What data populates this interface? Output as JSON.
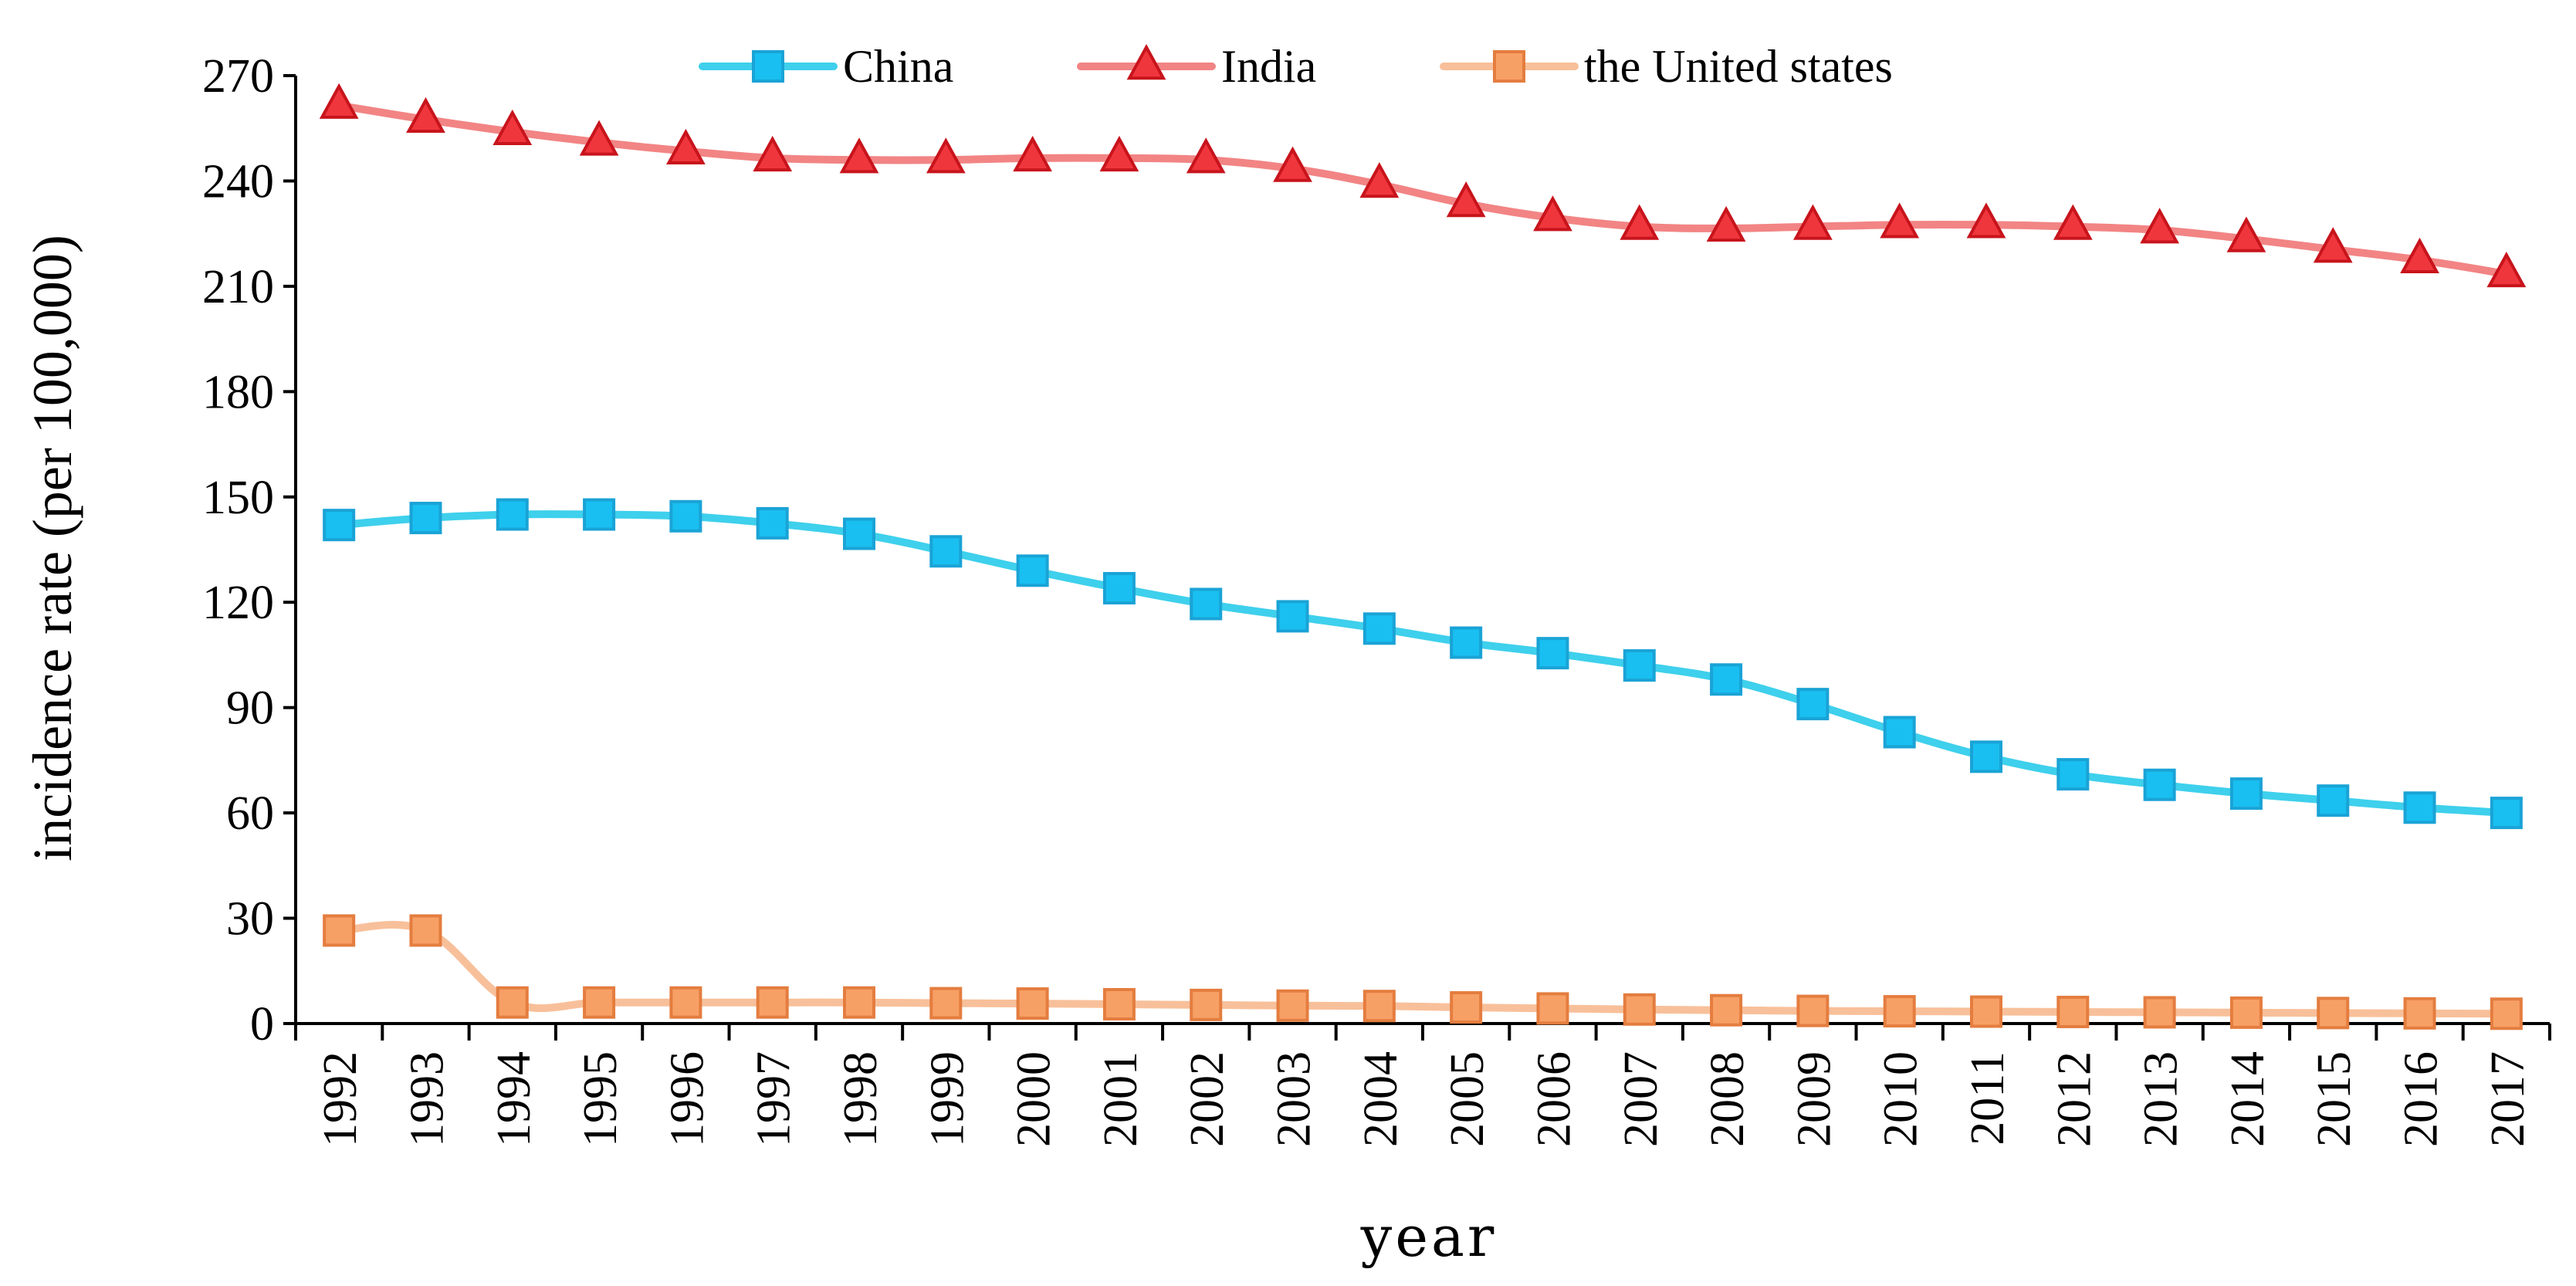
{
  "chart_data": {
    "type": "line",
    "title": "",
    "xlabel": "year",
    "ylabel": "incidence rate (per 100,000)",
    "ylim": [
      0,
      270
    ],
    "yticks": [
      0,
      30,
      60,
      90,
      120,
      150,
      180,
      210,
      240,
      270
    ],
    "ytick_labels": [
      "0",
      "30",
      "60",
      "90",
      "120",
      "150",
      "180",
      "210",
      "240",
      "270"
    ],
    "grid": false,
    "legend_position": "top-center",
    "categories": [
      "1992",
      "1993",
      "1994",
      "1995",
      "1996",
      "1997",
      "1998",
      "1999",
      "2000",
      "2001",
      "2002",
      "2003",
      "2004",
      "2005",
      "2006",
      "2007",
      "2008",
      "2009",
      "2010",
      "2011",
      "2012",
      "2013",
      "2014",
      "2015",
      "2016",
      "2017"
    ],
    "series": [
      {
        "name": "China",
        "marker": "square",
        "line_color": "#3ed0ec",
        "marker_fill": "#19bff0",
        "marker_edge": "#1aa3d6",
        "values": [
          142,
          144,
          145,
          145,
          144.5,
          142.5,
          139.5,
          134.5,
          129,
          124,
          119.5,
          116,
          112.5,
          108.5,
          105.5,
          102,
          98,
          91,
          83,
          76,
          71,
          68,
          65.5,
          63.5,
          61.5,
          60
        ]
      },
      {
        "name": "India",
        "marker": "triangle",
        "line_color": "#f28484",
        "marker_fill": "#f0363d",
        "marker_edge": "#c8141c",
        "values": [
          261.5,
          257.5,
          254,
          251,
          248.5,
          246.5,
          246,
          246,
          246.5,
          246.5,
          246,
          243.5,
          239,
          233.5,
          229.5,
          227,
          226.5,
          227,
          227.5,
          227.5,
          227,
          226,
          223.5,
          220.5,
          217.5,
          213.5
        ]
      },
      {
        "name": "the United states",
        "marker": "square",
        "line_color": "#f8c09a",
        "marker_fill": "#f7a066",
        "marker_edge": "#e47d3f",
        "values": [
          26.5,
          26.5,
          6,
          6,
          6,
          6,
          6,
          5.8,
          5.7,
          5.5,
          5.3,
          5.1,
          5,
          4.6,
          4.3,
          4,
          3.8,
          3.6,
          3.5,
          3.4,
          3.3,
          3.2,
          3.1,
          3,
          2.9,
          2.8
        ]
      }
    ]
  }
}
